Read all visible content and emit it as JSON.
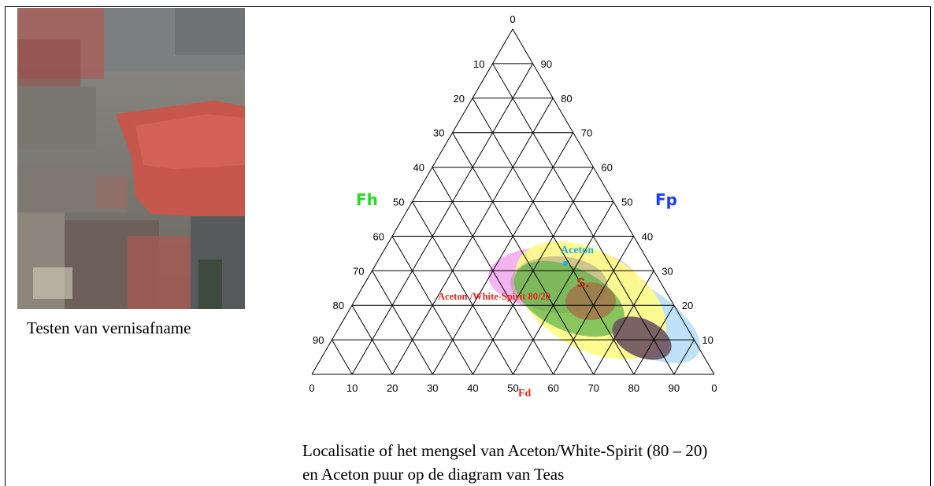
{
  "left_figure": {
    "caption": "Testen van vernisafname"
  },
  "right_figure": {
    "caption_lines": [
      "Localisatie of het mengsel van Aceton/White-Spirit (80 – 20)",
      "en Aceton puur op de diagram van Teas"
    ]
  },
  "teas_diagram": {
    "axis_labels": {
      "left": "Fh",
      "right": "Fp",
      "bottom": "Fd"
    },
    "left_ticks": [
      "0",
      "10",
      "20",
      "30",
      "40",
      "50",
      "60",
      "70",
      "80",
      "90"
    ],
    "right_ticks": [
      "90",
      "80",
      "70",
      "60",
      "50",
      "40",
      "30",
      "20",
      "10"
    ],
    "bottom_ticks": [
      "0",
      "10",
      "20",
      "30",
      "40",
      "50",
      "60",
      "70",
      "80",
      "90",
      "0"
    ],
    "annotations": {
      "aceton": "Aceton",
      "s_marker": "S.",
      "mix": "Aceton /White-Spirit 80/20"
    },
    "colors": {
      "fh": "#22dd22",
      "fp": "#1a3cff",
      "fd": "#dd2a10",
      "aceton": "#1ab4e6",
      "mix": "#e0281a"
    }
  }
}
